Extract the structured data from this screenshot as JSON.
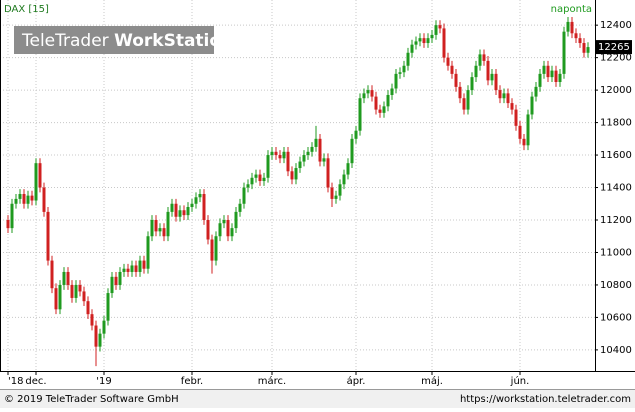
{
  "chart_data": {
    "type": "candlestick",
    "title": "DAX [15]",
    "period": "naponta",
    "watermark": [
      "TeleTrader",
      "WorkStation"
    ],
    "categories": [
      "'18",
      null,
      null,
      null,
      null,
      null,
      null,
      "dec.",
      null,
      null,
      null,
      null,
      null,
      null,
      null,
      null,
      null,
      null,
      null,
      null,
      null,
      null,
      null,
      null,
      "'19",
      null,
      null,
      null,
      null,
      null,
      null,
      null,
      null,
      null,
      null,
      null,
      null,
      null,
      null,
      null,
      null,
      null,
      null,
      null,
      null,
      null,
      "febr.",
      null,
      null,
      null,
      null,
      null,
      null,
      null,
      null,
      null,
      null,
      null,
      null,
      null,
      null,
      null,
      null,
      null,
      null,
      null,
      "márc.",
      null,
      null,
      null,
      null,
      null,
      null,
      null,
      null,
      null,
      null,
      null,
      null,
      null,
      null,
      null,
      null,
      null,
      null,
      null,
      null,
      "ápr.",
      null,
      null,
      null,
      null,
      null,
      null,
      null,
      null,
      null,
      null,
      null,
      null,
      null,
      null,
      null,
      null,
      null,
      null,
      "máj.",
      null,
      null,
      null,
      null,
      null,
      null,
      null,
      null,
      null,
      null,
      null,
      null,
      null,
      null,
      null,
      null,
      null,
      null,
      null,
      null,
      null,
      "jún.",
      null,
      null,
      null,
      null,
      null,
      null,
      null,
      null,
      null,
      null,
      null,
      null,
      null,
      null,
      null,
      null,
      null
    ],
    "open": [
      11200,
      11150,
      11300,
      11330,
      11360,
      11300,
      11350,
      11320,
      11550,
      11400,
      11250,
      10950,
      10780,
      10650,
      10800,
      10880,
      10800,
      10720,
      10800,
      10760,
      10700,
      10620,
      10550,
      10420,
      10500,
      10580,
      10750,
      10850,
      10800,
      10880,
      10900,
      10880,
      10920,
      10880,
      10950,
      10900,
      11100,
      11200,
      11130,
      11150,
      11100,
      11250,
      11300,
      11220,
      11260,
      11230,
      11280,
      11300,
      11340,
      11360,
      11200,
      11080,
      10950,
      11100,
      11180,
      11200,
      11100,
      11150,
      11250,
      11300,
      11400,
      11420,
      11460,
      11480,
      11440,
      11460,
      11600,
      11620,
      11600,
      11580,
      11620,
      11500,
      11450,
      11520,
      11560,
      11600,
      11620,
      11650,
      11700,
      11560,
      11580,
      11400,
      11330,
      11350,
      11420,
      11480,
      11550,
      11700,
      11750,
      11950,
      11980,
      12000,
      11960,
      11880,
      11860,
      11900,
      11970,
      12010,
      12100,
      12110,
      12150,
      12230,
      12280,
      12300,
      12320,
      12290,
      12320,
      12340,
      12400,
      12380,
      12200,
      12150,
      12100,
      12020,
      11950,
      11880,
      12000,
      12080,
      12150,
      12220,
      12180,
      12060,
      12100,
      12000,
      11950,
      11980,
      11920,
      11880,
      11780,
      11700,
      11660,
      11850,
      11960,
      12020,
      12100,
      12150,
      12080,
      12120,
      12050,
      12100,
      12360,
      12420,
      12350,
      12320,
      12290,
      12230
    ],
    "high": [
      11230,
      11330,
      11360,
      11390,
      11390,
      11380,
      11380,
      11580,
      11580,
      11430,
      11280,
      10980,
      10810,
      10830,
      10910,
      10910,
      10830,
      10830,
      10830,
      10790,
      10730,
      10650,
      10580,
      10530,
      10610,
      10780,
      10880,
      10880,
      10910,
      10930,
      10930,
      10950,
      10950,
      10980,
      10980,
      11130,
      11230,
      11230,
      11180,
      11180,
      11280,
      11330,
      11330,
      11290,
      11290,
      11310,
      11330,
      11370,
      11390,
      11390,
      11230,
      11110,
      11130,
      11210,
      11230,
      11230,
      11180,
      11280,
      11330,
      11430,
      11450,
      11490,
      11510,
      11510,
      11490,
      11630,
      11650,
      11650,
      11630,
      11650,
      11650,
      11530,
      11550,
      11590,
      11630,
      11650,
      11680,
      11780,
      11730,
      11610,
      11610,
      11430,
      11380,
      11450,
      11510,
      11580,
      11730,
      11780,
      11980,
      12010,
      12030,
      12030,
      11990,
      11910,
      11930,
      12000,
      12040,
      12130,
      12140,
      12180,
      12260,
      12310,
      12330,
      12350,
      12350,
      12350,
      12370,
      12430,
      12430,
      12410,
      12230,
      12180,
      12130,
      12050,
      11980,
      12030,
      12110,
      12180,
      12250,
      12250,
      12210,
      12130,
      12130,
      12030,
      12010,
      12010,
      11950,
      11910,
      11810,
      11730,
      11880,
      11990,
      12050,
      12130,
      12180,
      12180,
      12150,
      12150,
      12130,
      12390,
      12450,
      12450,
      12380,
      12350,
      12320,
      12295
    ],
    "low": [
      11120,
      11120,
      11270,
      11300,
      11270,
      11270,
      11290,
      11290,
      11370,
      11220,
      10920,
      10750,
      10620,
      10620,
      10770,
      10770,
      10690,
      10690,
      10730,
      10670,
      10590,
      10520,
      10300,
      10390,
      10470,
      10550,
      10720,
      10770,
      10770,
      10850,
      10850,
      10850,
      10850,
      10850,
      10870,
      10870,
      11070,
      11100,
      11100,
      11070,
      11070,
      11220,
      11190,
      11190,
      11200,
      11200,
      11250,
      11270,
      11310,
      11170,
      11050,
      10870,
      10920,
      11070,
      11150,
      11070,
      11070,
      11120,
      11220,
      11270,
      11370,
      11390,
      11430,
      11410,
      11410,
      11430,
      11570,
      11570,
      11550,
      11550,
      11470,
      11420,
      11420,
      11490,
      11530,
      11570,
      11590,
      11620,
      11530,
      11530,
      11370,
      11280,
      11300,
      11320,
      11390,
      11450,
      11520,
      11670,
      11720,
      11920,
      11950,
      11930,
      11850,
      11830,
      11830,
      11870,
      11940,
      11980,
      12070,
      12080,
      12120,
      12200,
      12250,
      12270,
      12260,
      12260,
      12290,
      12310,
      12350,
      12170,
      12120,
      12070,
      11990,
      11920,
      11850,
      11850,
      11970,
      12050,
      12120,
      12150,
      12030,
      12030,
      11970,
      11920,
      11920,
      11890,
      11850,
      11750,
      11670,
      11630,
      11630,
      11820,
      11930,
      11990,
      12070,
      12050,
      12050,
      12020,
      12020,
      12070,
      12330,
      12320,
      12290,
      12260,
      12200,
      12200
    ],
    "close": [
      11150,
      11300,
      11330,
      11360,
      11300,
      11350,
      11320,
      11550,
      11400,
      11250,
      10950,
      10780,
      10650,
      10800,
      10880,
      10800,
      10720,
      10800,
      10760,
      10700,
      10620,
      10550,
      10420,
      10500,
      10580,
      10750,
      10850,
      10800,
      10880,
      10900,
      10880,
      10920,
      10880,
      10950,
      10900,
      11100,
      11200,
      11130,
      11150,
      11100,
      11250,
      11300,
      11220,
      11260,
      11230,
      11280,
      11300,
      11340,
      11360,
      11200,
      11080,
      10950,
      11100,
      11180,
      11200,
      11100,
      11150,
      11250,
      11300,
      11400,
      11420,
      11460,
      11480,
      11440,
      11460,
      11600,
      11620,
      11600,
      11580,
      11620,
      11500,
      11450,
      11520,
      11560,
      11600,
      11620,
      11650,
      11700,
      11560,
      11580,
      11400,
      11330,
      11350,
      11420,
      11480,
      11550,
      11700,
      11750,
      11950,
      11980,
      12000,
      11960,
      11880,
      11860,
      11900,
      11970,
      12010,
      12100,
      12110,
      12150,
      12230,
      12280,
      12300,
      12320,
      12290,
      12320,
      12340,
      12400,
      12380,
      12200,
      12150,
      12100,
      12020,
      11950,
      11880,
      12000,
      12080,
      12150,
      12220,
      12180,
      12060,
      12100,
      12000,
      11950,
      11980,
      11920,
      11880,
      11780,
      11700,
      11660,
      11850,
      11960,
      12020,
      12100,
      12150,
      12080,
      12120,
      12050,
      12100,
      12360,
      12420,
      12350,
      12320,
      12290,
      12230,
      12265
    ],
    "up_color": "#1f9a1f",
    "down_color": "#d02020",
    "ylim": [
      10270,
      12555
    ],
    "yticks": [
      10400,
      10600,
      10800,
      11000,
      11200,
      11400,
      11600,
      11800,
      12000,
      12200,
      12400
    ],
    "grid": true
  },
  "footer": {
    "copyright": "© 2019 TeleTrader Software GmbH",
    "url": "https://workstation.teletrader.com"
  }
}
